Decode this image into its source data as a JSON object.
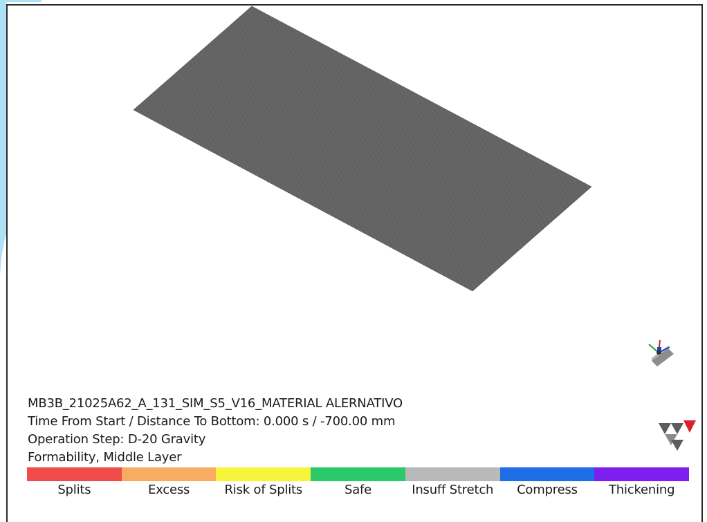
{
  "model": {
    "name": "MB3B_21025A62_A_131_SIM_S5_V16_MATERIAL ALERNATIVO",
    "time_line": "Time From Start / Distance To Bottom: 0.000 s / -700.00 mm",
    "operation_step": "Operation Step: D-20 Gravity",
    "result_type": "Formability, Middle Layer"
  },
  "legend": {
    "items": [
      {
        "label": "Splits",
        "color": "#f24b4b"
      },
      {
        "label": "Excess",
        "color": "#f8ac62"
      },
      {
        "label": "Risk of Splits",
        "color": "#f6f53c"
      },
      {
        "label": "Safe",
        "color": "#2cc96a"
      },
      {
        "label": "Insuff Stretch",
        "color": "#b9b9b9"
      },
      {
        "label": "Compress",
        "color": "#1e6ee6"
      },
      {
        "label": "Thickening",
        "color": "#7d1ff0"
      }
    ]
  },
  "colors": {
    "sheet": "#686868",
    "side_accent": "#aee1f5",
    "logo_dark": "#5c5c5c",
    "logo_red": "#d9232e"
  },
  "icons": {
    "triad": "coordinate-triad-icon",
    "logo": "autoform-logo-icon"
  }
}
